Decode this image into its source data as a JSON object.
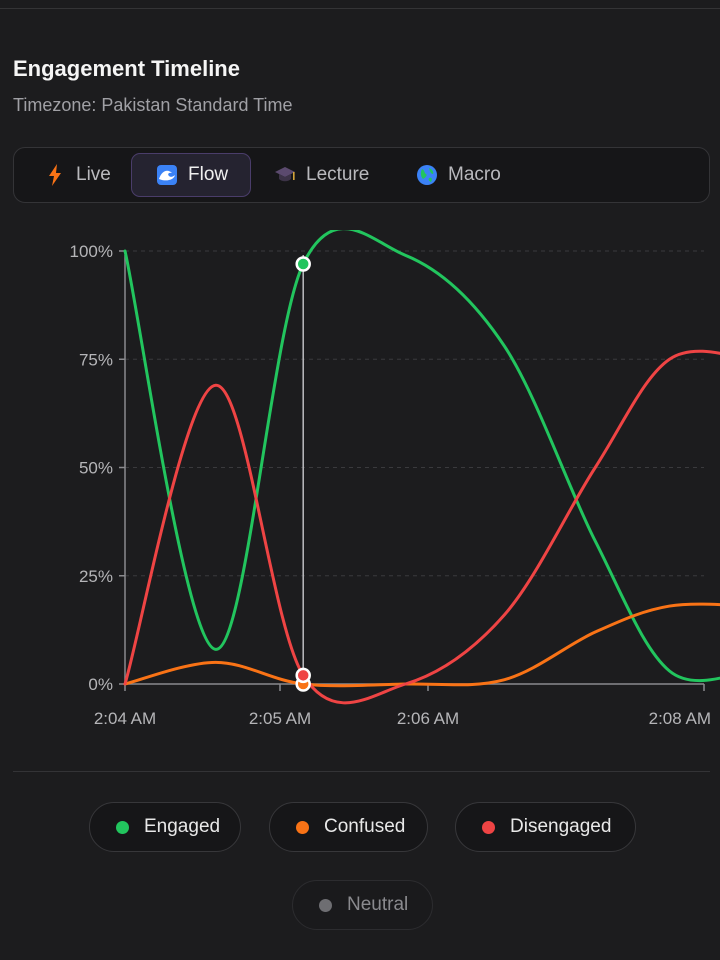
{
  "header": {
    "title": "Engagement Timeline",
    "subtitle": "Timezone: Pakistan Standard Time"
  },
  "tabs": [
    {
      "label": "Live",
      "icon": "lightning-icon",
      "active": false
    },
    {
      "label": "Flow",
      "icon": "wave-icon",
      "active": true
    },
    {
      "label": "Lecture",
      "icon": "graduation-cap-icon",
      "active": false
    },
    {
      "label": "Macro",
      "icon": "globe-icon",
      "active": false
    }
  ],
  "chart_data": {
    "type": "line",
    "x_unit": "minutes after 2:04 AM",
    "xlim": [
      0,
      4
    ],
    "ylim": [
      0,
      100
    ],
    "y_ticks": [
      {
        "value": 0,
        "label": "0%"
      },
      {
        "value": 25,
        "label": "25%"
      },
      {
        "value": 50,
        "label": "50%"
      },
      {
        "value": 75,
        "label": "75%"
      },
      {
        "value": 100,
        "label": "100%"
      }
    ],
    "x_ticks": [
      {
        "value": 0,
        "label": "2:04 AM"
      },
      {
        "value": 1,
        "label": "2:05 AM"
      },
      {
        "value": 2,
        "label": "2:06 AM"
      },
      {
        "value": 3.5,
        "label": "2:08 AM"
      }
    ],
    "grid": true,
    "hover_x": 1.08,
    "series": [
      {
        "name": "Engaged",
        "color": "#22c55e",
        "points": [
          [
            0,
            100
          ],
          [
            0.55,
            8
          ],
          [
            1.08,
            97
          ],
          [
            1.7,
            99
          ],
          [
            2.3,
            78
          ],
          [
            2.85,
            33
          ],
          [
            3.3,
            3
          ],
          [
            3.8,
            3
          ]
        ]
      },
      {
        "name": "Confused",
        "color": "#f97316",
        "points": [
          [
            0,
            0
          ],
          [
            0.55,
            5
          ],
          [
            1.08,
            0
          ],
          [
            1.7,
            0
          ],
          [
            2.3,
            1
          ],
          [
            2.85,
            12
          ],
          [
            3.3,
            18
          ],
          [
            3.8,
            18
          ]
        ]
      },
      {
        "name": "Disengaged",
        "color": "#ef4444",
        "points": [
          [
            0,
            0
          ],
          [
            0.55,
            69
          ],
          [
            1.08,
            2
          ],
          [
            1.7,
            0
          ],
          [
            2.3,
            16
          ],
          [
            2.85,
            50
          ],
          [
            3.3,
            75
          ],
          [
            3.8,
            75
          ]
        ]
      }
    ]
  },
  "legend": [
    {
      "label": "Engaged",
      "color": "#22c55e",
      "active": true
    },
    {
      "label": "Confused",
      "color": "#f97316",
      "active": true
    },
    {
      "label": "Disengaged",
      "color": "#ef4444",
      "active": true
    },
    {
      "label": "Neutral",
      "color": "#8a8a8e",
      "active": false
    }
  ]
}
